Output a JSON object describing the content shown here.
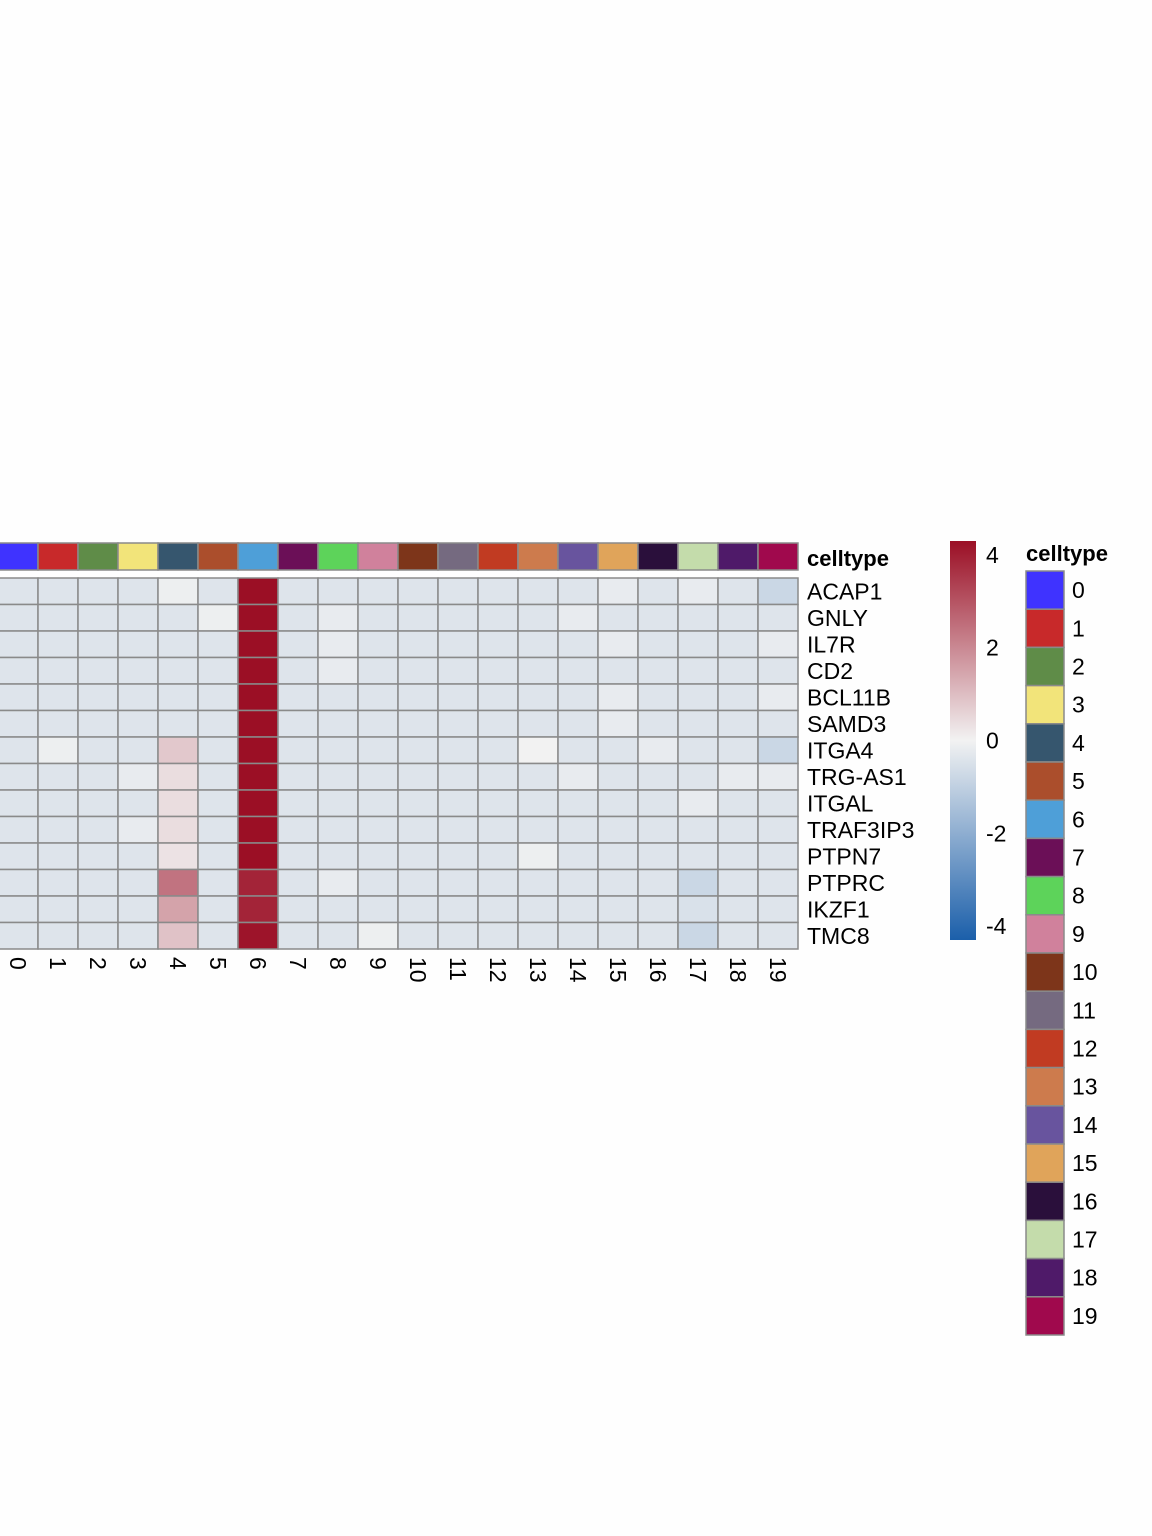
{
  "chart_data": {
    "type": "heatmap",
    "title": "",
    "xlabel": "",
    "ylabel": "",
    "annotation_label": "celltype",
    "categories": [
      "0",
      "1",
      "2",
      "3",
      "4",
      "5",
      "6",
      "7",
      "8",
      "9",
      "10",
      "11",
      "12",
      "13",
      "14",
      "15",
      "16",
      "17",
      "18",
      "19"
    ],
    "genes": [
      "ACAP1",
      "GNLY",
      "IL7R",
      "CD2",
      "BCL11B",
      "SAMD3",
      "ITGA4",
      "TRG-AS1",
      "ITGAL",
      "TRAF3IP3",
      "PTPN7",
      "PTPRC",
      "IKZF1",
      "TMC8"
    ],
    "values": [
      [
        -0.4,
        -0.4,
        -0.4,
        -0.4,
        -0.1,
        -0.4,
        4.3,
        -0.4,
        -0.4,
        -0.4,
        -0.4,
        -0.4,
        -0.4,
        -0.4,
        -0.4,
        -0.2,
        -0.4,
        -0.2,
        -0.4,
        -0.8
      ],
      [
        -0.4,
        -0.4,
        -0.4,
        -0.4,
        -0.4,
        -0.1,
        4.3,
        -0.4,
        -0.2,
        -0.4,
        -0.4,
        -0.4,
        -0.4,
        -0.4,
        -0.2,
        -0.4,
        -0.4,
        -0.4,
        -0.4,
        -0.4
      ],
      [
        -0.4,
        -0.4,
        -0.4,
        -0.4,
        -0.4,
        -0.4,
        4.3,
        -0.4,
        -0.2,
        -0.4,
        -0.4,
        -0.4,
        -0.4,
        -0.4,
        -0.4,
        -0.2,
        -0.4,
        -0.4,
        -0.4,
        -0.2
      ],
      [
        -0.4,
        -0.4,
        -0.4,
        -0.4,
        -0.4,
        -0.4,
        4.3,
        -0.4,
        -0.2,
        -0.4,
        -0.4,
        -0.4,
        -0.4,
        -0.4,
        -0.4,
        -0.4,
        -0.4,
        -0.4,
        -0.4,
        -0.4
      ],
      [
        -0.4,
        -0.4,
        -0.4,
        -0.4,
        -0.4,
        -0.4,
        4.3,
        -0.4,
        -0.4,
        -0.4,
        -0.4,
        -0.4,
        -0.4,
        -0.4,
        -0.4,
        -0.2,
        -0.4,
        -0.4,
        -0.4,
        -0.2
      ],
      [
        -0.4,
        -0.4,
        -0.4,
        -0.4,
        -0.4,
        -0.4,
        4.3,
        -0.4,
        -0.4,
        -0.4,
        -0.4,
        -0.4,
        -0.4,
        -0.4,
        -0.4,
        -0.2,
        -0.4,
        -0.4,
        -0.4,
        -0.4
      ],
      [
        -0.4,
        -0.1,
        -0.4,
        -0.4,
        0.8,
        -0.4,
        4.3,
        -0.4,
        -0.4,
        -0.4,
        -0.4,
        -0.4,
        -0.4,
        0.0,
        -0.4,
        -0.4,
        -0.2,
        -0.4,
        -0.4,
        -0.8
      ],
      [
        -0.4,
        -0.4,
        -0.4,
        -0.2,
        0.4,
        -0.4,
        4.3,
        -0.4,
        -0.4,
        -0.4,
        -0.4,
        -0.4,
        -0.4,
        -0.4,
        -0.2,
        -0.4,
        -0.4,
        -0.4,
        -0.2,
        -0.2
      ],
      [
        -0.4,
        -0.4,
        -0.4,
        -0.4,
        0.4,
        -0.4,
        4.3,
        -0.4,
        -0.4,
        -0.4,
        -0.4,
        -0.4,
        -0.4,
        -0.4,
        -0.4,
        -0.4,
        -0.4,
        -0.2,
        -0.4,
        -0.4
      ],
      [
        -0.4,
        -0.4,
        -0.4,
        -0.2,
        0.4,
        -0.4,
        4.3,
        -0.4,
        -0.4,
        -0.4,
        -0.4,
        -0.4,
        -0.4,
        -0.4,
        -0.4,
        -0.4,
        -0.4,
        -0.4,
        -0.4,
        -0.4
      ],
      [
        -0.4,
        -0.4,
        -0.4,
        -0.4,
        0.3,
        -0.4,
        4.3,
        -0.4,
        -0.4,
        -0.4,
        -0.4,
        -0.4,
        -0.4,
        -0.1,
        -0.4,
        -0.4,
        -0.4,
        -0.4,
        -0.4,
        -0.4
      ],
      [
        -0.4,
        -0.4,
        -0.4,
        -0.4,
        2.4,
        -0.4,
        3.9,
        -0.4,
        -0.2,
        -0.4,
        -0.4,
        -0.4,
        -0.4,
        -0.4,
        -0.4,
        -0.4,
        -0.4,
        -0.8,
        -0.4,
        -0.4
      ],
      [
        -0.4,
        -0.4,
        -0.4,
        -0.4,
        1.5,
        -0.4,
        3.9,
        -0.4,
        -0.4,
        -0.4,
        -0.4,
        -0.4,
        -0.4,
        -0.4,
        -0.4,
        -0.4,
        -0.4,
        -0.5,
        -0.4,
        -0.4
      ],
      [
        -0.4,
        -0.4,
        -0.4,
        -0.4,
        0.9,
        -0.4,
        4.2,
        -0.4,
        -0.4,
        -0.1,
        -0.4,
        -0.4,
        -0.4,
        -0.4,
        -0.4,
        -0.4,
        -0.4,
        -0.8,
        -0.4,
        -0.4
      ]
    ],
    "celltype_colors": [
      "#3f33ff",
      "#c8292a",
      "#5f8c48",
      "#f2e47a",
      "#36566e",
      "#ab4e2c",
      "#4e9fd8",
      "#6b0f57",
      "#5dd35a",
      "#d0819c",
      "#7d351a",
      "#756a80",
      "#c13b22",
      "#cd7b4d",
      "#68549e",
      "#e0a45a",
      "#2a0f3b",
      "#c4dcab",
      "#4f1a69",
      "#a0094d"
    ],
    "colorbar": {
      "ticks": [
        "4",
        "2",
        "0",
        "-2",
        "-4"
      ],
      "range": [
        -4.3,
        4.3
      ],
      "low_color": "#1b5faa",
      "mid_color": "#f2f2f2",
      "high_color": "#9b0f25"
    },
    "legend_placement": "right"
  }
}
